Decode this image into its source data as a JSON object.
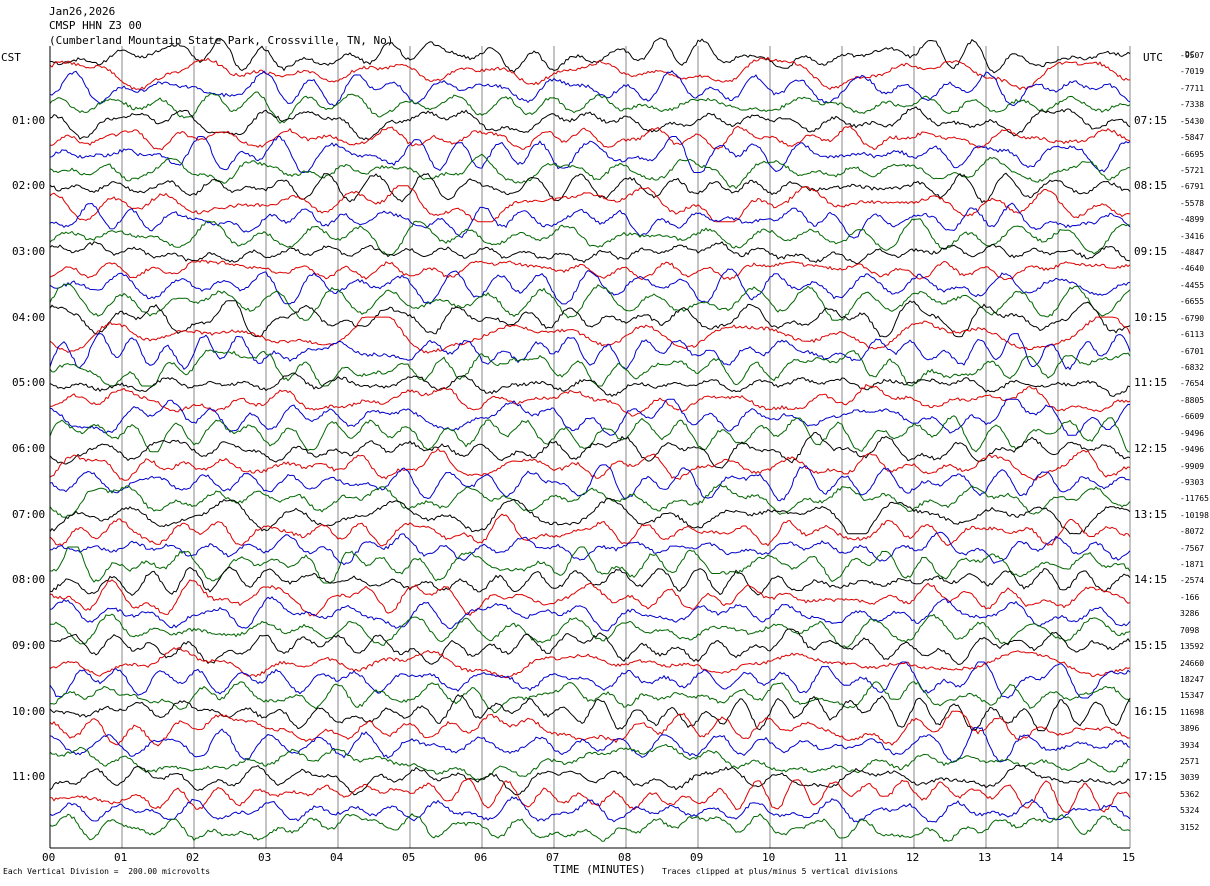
{
  "header": {
    "date": "Jan26,2026",
    "station": "CMSP HHN Z3 00",
    "location": "(Cumberland Mountain State Park, Crossville, TN, No)"
  },
  "left_tz": "CST",
  "right_tz": "UTC",
  "dc_label": "DC",
  "footer": {
    "scale": "Each Vertical Division =  200.00 microvolts",
    "xlabel": "TIME (MINUTES)",
    "clip_note": "Traces clipped at plus/minus 5 vertical divisions"
  },
  "chart_data": {
    "type": "line",
    "subtype": "helicorder",
    "xlabel": "TIME (MINUTES)",
    "x_range": [
      0,
      15
    ],
    "x_ticks": [
      "00",
      "01",
      "02",
      "03",
      "04",
      "05",
      "06",
      "07",
      "08",
      "09",
      "10",
      "11",
      "12",
      "13",
      "14",
      "15"
    ],
    "trace_minutes": 15,
    "trace_colors": [
      "#000000",
      "#dd0000",
      "#0000cc",
      "#006600"
    ],
    "grid": "vertical lines each minute",
    "left_labels": [
      "01:00",
      "02:00",
      "03:00",
      "04:00",
      "05:00",
      "06:00",
      "07:00",
      "08:00",
      "09:00",
      "10:00",
      "11:00"
    ],
    "right_labels": [
      "07:15",
      "08:15",
      "09:15",
      "10:15",
      "11:15",
      "12:15",
      "13:15",
      "14:15",
      "15:15",
      "16:15",
      "17:15"
    ],
    "label_trace_index": [
      4,
      8,
      12,
      16,
      20,
      24,
      28,
      32,
      36,
      40,
      44
    ],
    "dc_offsets": [
      "-9507",
      "-7019",
      "-7711",
      "-7338",
      "-5430",
      "-5847",
      "-6695",
      "-5721",
      "-6791",
      "-5578",
      "-4899",
      "-3416",
      "-4847",
      "-4640",
      "-4455",
      "-6655",
      "-6790",
      "-6113",
      "-6701",
      "-6832",
      "-7654",
      "-8805",
      "-6609",
      "-9496",
      "-9496",
      "-9909",
      "-9303",
      "-11765",
      "-10198",
      "-8072",
      "-7567",
      "-1871",
      "-2574",
      "-166",
      "3286",
      "7098",
      "13592",
      "24660",
      "18247",
      "15347",
      "11698",
      "3896",
      "3934",
      "2571",
      "3039",
      "5362",
      "5324",
      "3152"
    ]
  }
}
